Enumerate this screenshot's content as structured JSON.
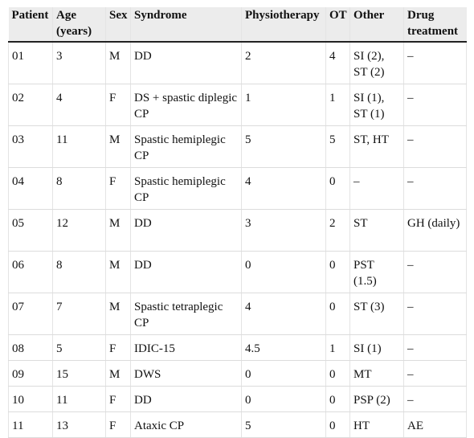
{
  "headers": [
    "Patient",
    "Age (years)",
    "Sex",
    "Syndrome",
    "Physiotherapy",
    "OT",
    "Other",
    "Drug treatment"
  ],
  "rows": [
    [
      "01",
      "3",
      "M",
      "DD",
      "2",
      "4",
      "SI (2), ST (2)",
      "–"
    ],
    [
      "02",
      "4",
      "F",
      "DS + spastic diplegic CP",
      "1",
      "1",
      "SI (1), ST (1)",
      "–"
    ],
    [
      "03",
      "11",
      "M",
      "Spastic hemiplegic CP",
      "5",
      "5",
      "ST, HT",
      "–"
    ],
    [
      "04",
      "8",
      "F",
      "Spastic hemiplegic CP",
      "4",
      "0",
      "–",
      "–"
    ],
    [
      "05",
      "12",
      "M",
      "DD",
      "3",
      "2",
      "ST",
      "GH (daily)"
    ],
    [
      "06",
      "8",
      "M",
      "DD",
      "0",
      "0",
      "PST (1.5)",
      "–"
    ],
    [
      "07",
      "7",
      "M",
      "Spastic tetraplegic CP",
      "4",
      "0",
      "ST (3)",
      "–"
    ],
    [
      "08",
      "5",
      "F",
      "IDIC-15",
      "4.5",
      "1",
      "SI (1)",
      "–"
    ],
    [
      "09",
      "15",
      "M",
      "DWS",
      "0",
      "0",
      "MT",
      "–"
    ],
    [
      "10",
      "11",
      "F",
      "DD",
      "0",
      "0",
      "PSP (2)",
      "–"
    ],
    [
      "11",
      "13",
      "F",
      "Ataxic CP",
      "5",
      "0",
      "HT",
      "AE"
    ]
  ]
}
